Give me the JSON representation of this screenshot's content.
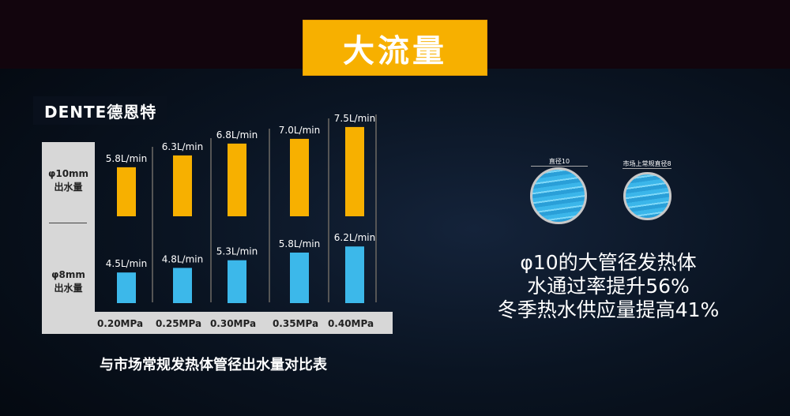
{
  "title": "大流量",
  "logo": "DENTE德恩特",
  "chart_data": {
    "type": "bar",
    "categories": [
      "0.20MPa",
      "0.25MPa",
      "0.30MPa",
      "0.35MPa",
      "0.40MPa"
    ],
    "series": [
      {
        "name": "φ10mm 出水量",
        "values": [
          5.8,
          6.3,
          6.8,
          7.0,
          7.5
        ],
        "labels": [
          "5.8L/min",
          "6.3L/min",
          "6.8L/min",
          "7.0L/min",
          "7.5L/min"
        ],
        "color": "#f7b000"
      },
      {
        "name": "φ8mm 出水量",
        "values": [
          4.5,
          4.8,
          5.3,
          5.8,
          6.2
        ],
        "labels": [
          "4.5L/min",
          "4.8L/min",
          "5.3L/min",
          "5.8L/min",
          "6.2L/min"
        ],
        "color": "#3cb8ea"
      }
    ],
    "row_labels": [
      [
        "φ10mm",
        "出水量"
      ],
      [
        "φ8mm",
        "出水量"
      ]
    ],
    "title": "与市场常规发热体管径出水量对比表"
  },
  "diagram": {
    "circle1": "直径10",
    "circle2": "市场上常规直径8"
  },
  "claims": [
    "φ10的大管径发热体",
    "水通过率提升56%",
    "冬季热水供应量提高41%"
  ]
}
